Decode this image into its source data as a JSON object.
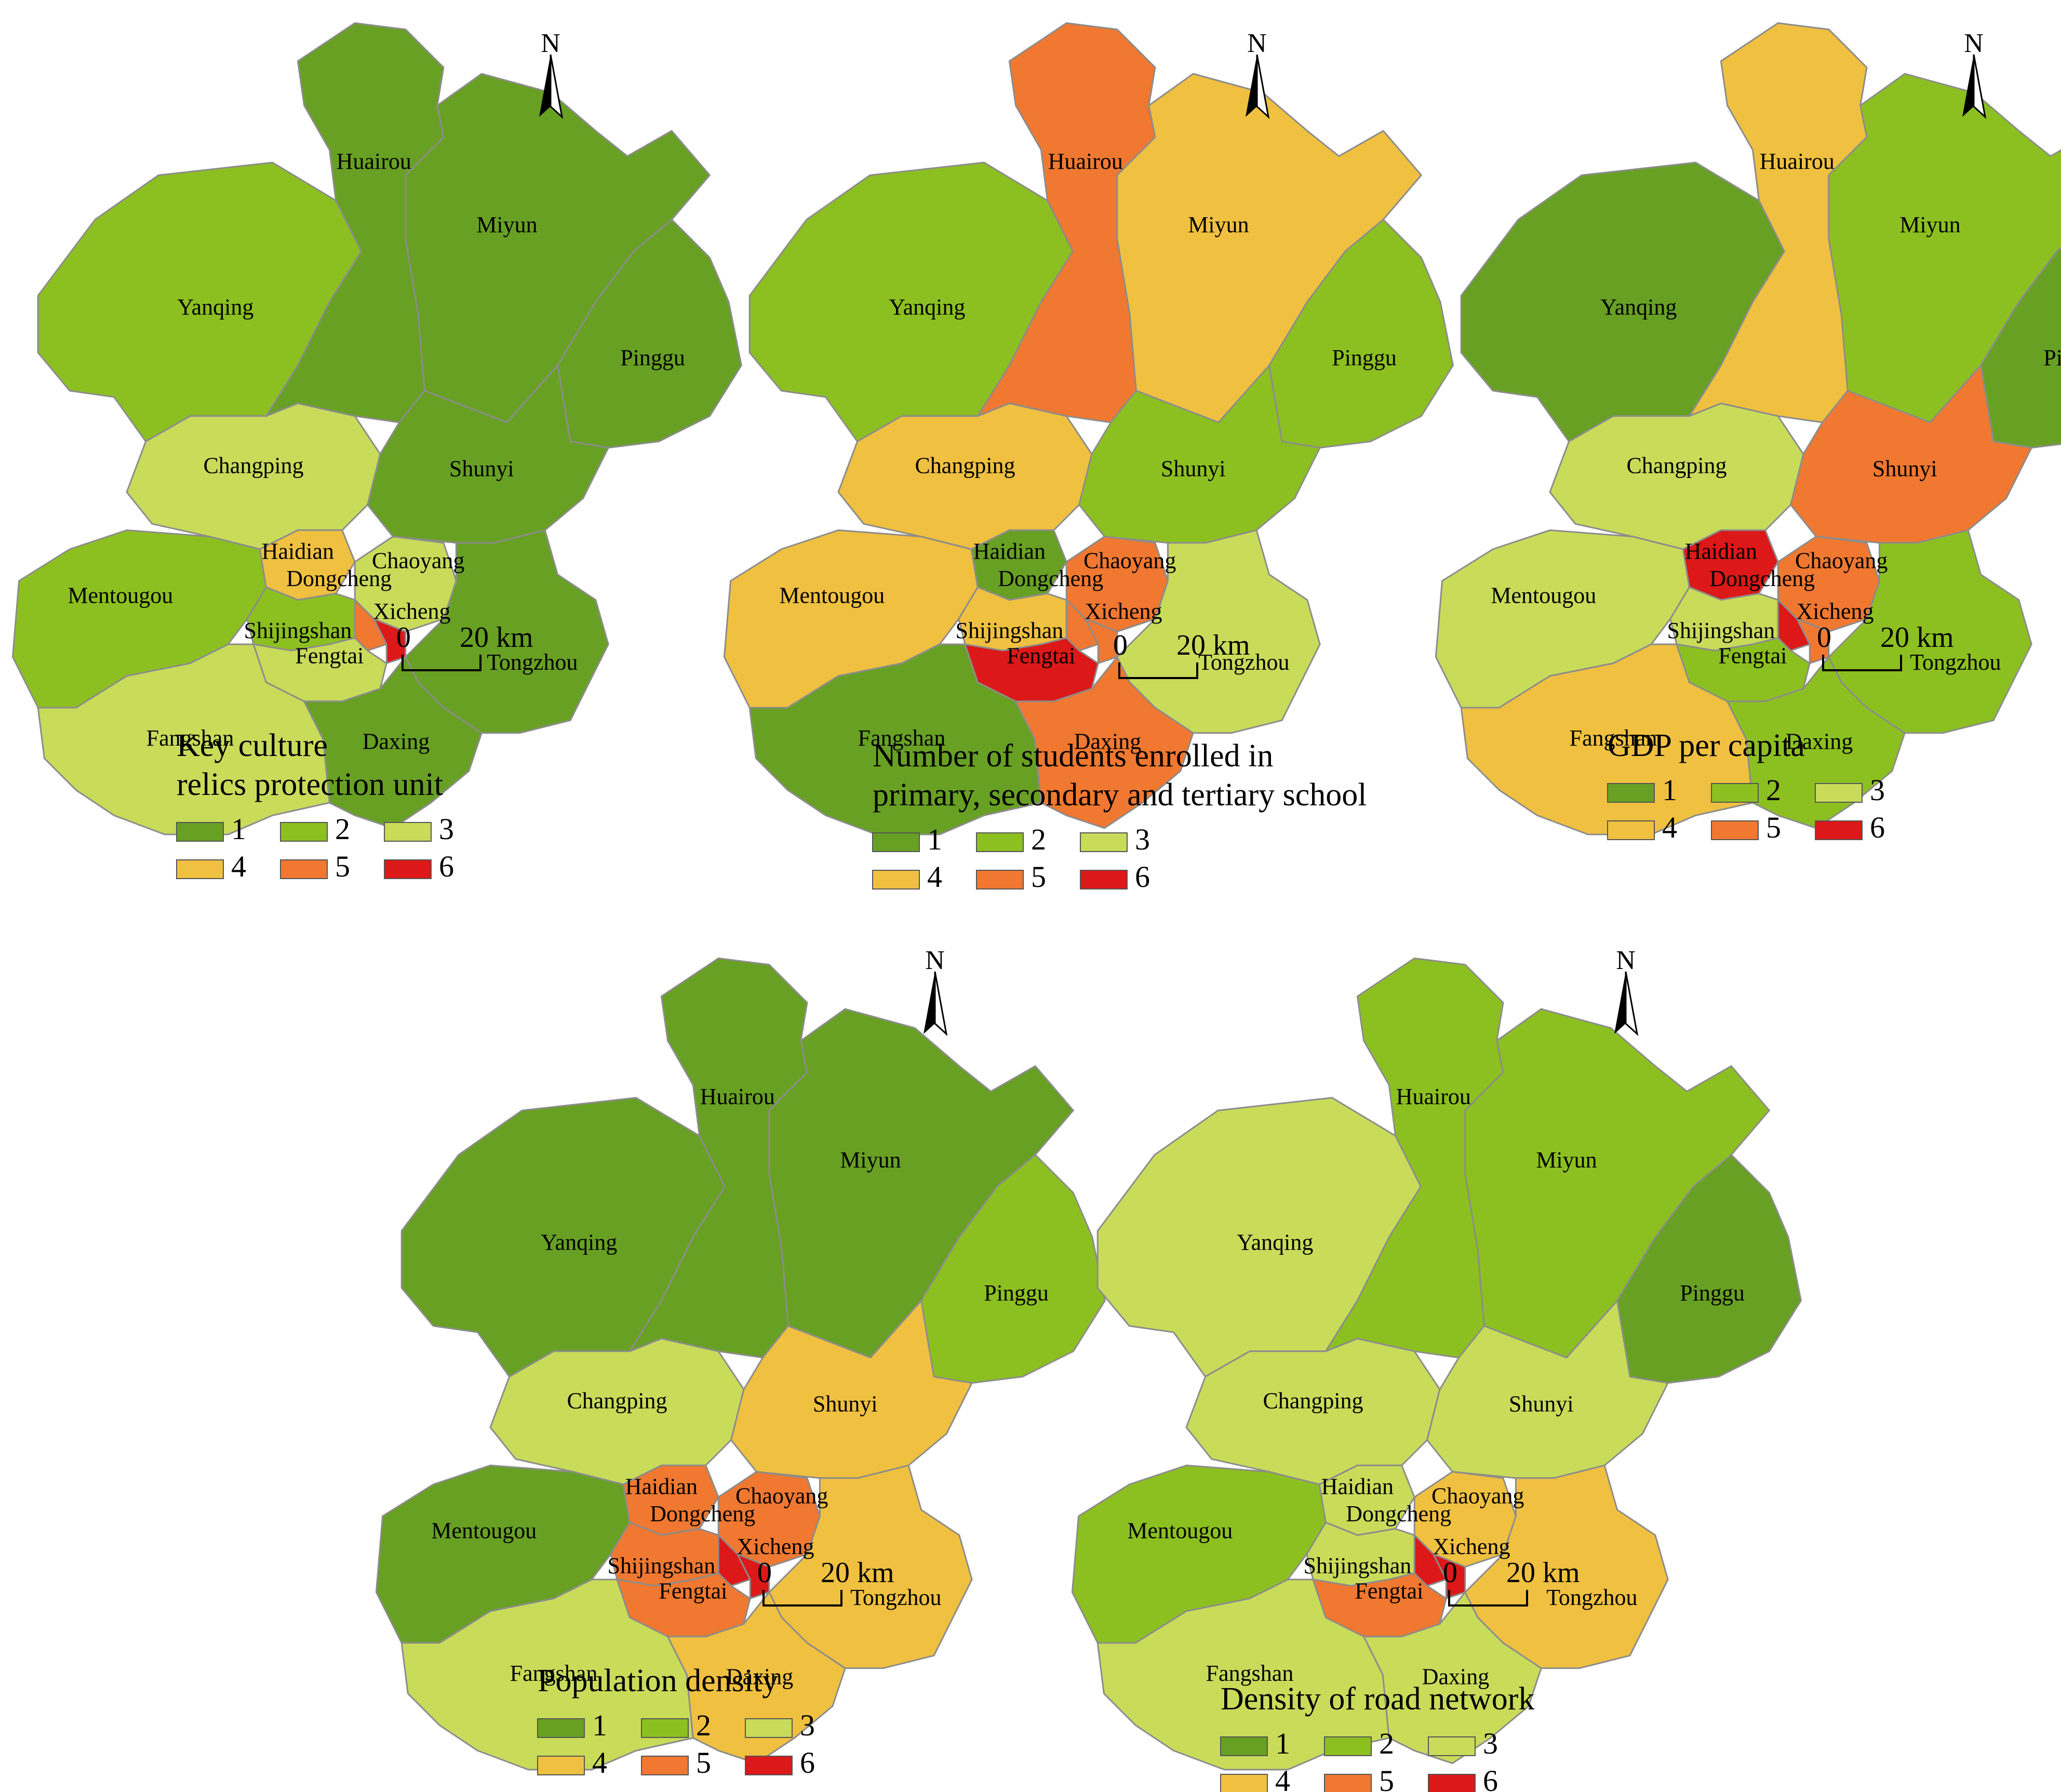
{
  "districts": [
    "Huairou",
    "Miyun",
    "Yanqing",
    "Pinggu",
    "Changping",
    "Shunyi",
    "Haidian",
    "Chaoyang",
    "Dongcheng",
    "Mentougou",
    "Shijingshan",
    "Xicheng",
    "Fengtai",
    "Tongzhou",
    "Fangshan",
    "Daxing"
  ],
  "class_colors": {
    "1": "#68a024",
    "2": "#8cc020",
    "3": "#c8dc5a",
    "4": "#f0c040",
    "5": "#f07830",
    "6": "#dc1818"
  },
  "legend_classes": [
    "1",
    "2",
    "3",
    "4",
    "5",
    "6"
  ],
  "north_label": "N",
  "scale_bar": {
    "start": "0",
    "end": "20 km"
  },
  "maps": [
    {
      "title_lines": [
        "Key culture",
        "relics protection unit"
      ],
      "classes": {
        "Huairou": 1,
        "Miyun": 1,
        "Yanqing": 2,
        "Pinggu": 1,
        "Changping": 3,
        "Shunyi": 1,
        "Haidian": 4,
        "Chaoyang": 3,
        "Dongcheng": 5,
        "Mentougou": 2,
        "Shijingshan": 2,
        "Xicheng": 6,
        "Fengtai": 3,
        "Tongzhou": 1,
        "Fangshan": 3,
        "Daxing": 1
      }
    },
    {
      "title_lines": [
        "Number of students enrolled in",
        "primary, secondary and tertiary school"
      ],
      "classes": {
        "Huairou": 5,
        "Miyun": 4,
        "Yanqing": 2,
        "Pinggu": 2,
        "Changping": 4,
        "Shunyi": 2,
        "Haidian": 1,
        "Chaoyang": 5,
        "Dongcheng": 5,
        "Mentougou": 4,
        "Shijingshan": 4,
        "Xicheng": 5,
        "Fengtai": 6,
        "Tongzhou": 3,
        "Fangshan": 1,
        "Daxing": 5
      }
    },
    {
      "title_lines": [
        "GDP per capita"
      ],
      "classes": {
        "Huairou": 4,
        "Miyun": 2,
        "Yanqing": 1,
        "Pinggu": 1,
        "Changping": 3,
        "Shunyi": 5,
        "Haidian": 6,
        "Chaoyang": 5,
        "Dongcheng": 6,
        "Mentougou": 3,
        "Shijingshan": 3,
        "Xicheng": 5,
        "Fengtai": 2,
        "Tongzhou": 2,
        "Fangshan": 4,
        "Daxing": 2
      }
    },
    {
      "title_lines": [
        "Population density"
      ],
      "classes": {
        "Huairou": 1,
        "Miyun": 1,
        "Yanqing": 1,
        "Pinggu": 2,
        "Changping": 3,
        "Shunyi": 4,
        "Haidian": 5,
        "Chaoyang": 5,
        "Dongcheng": 6,
        "Mentougou": 1,
        "Shijingshan": 5,
        "Xicheng": 6,
        "Fengtai": 5,
        "Tongzhou": 4,
        "Fangshan": 3,
        "Daxing": 4
      }
    },
    {
      "title_lines": [
        "Density of road network"
      ],
      "classes": {
        "Huairou": 2,
        "Miyun": 2,
        "Yanqing": 3,
        "Pinggu": 1,
        "Changping": 3,
        "Shunyi": 3,
        "Haidian": 3,
        "Chaoyang": 4,
        "Dongcheng": 6,
        "Mentougou": 2,
        "Shijingshan": 3,
        "Xicheng": 6,
        "Fengtai": 5,
        "Tongzhou": 4,
        "Fangshan": 3,
        "Daxing": 3
      }
    }
  ]
}
